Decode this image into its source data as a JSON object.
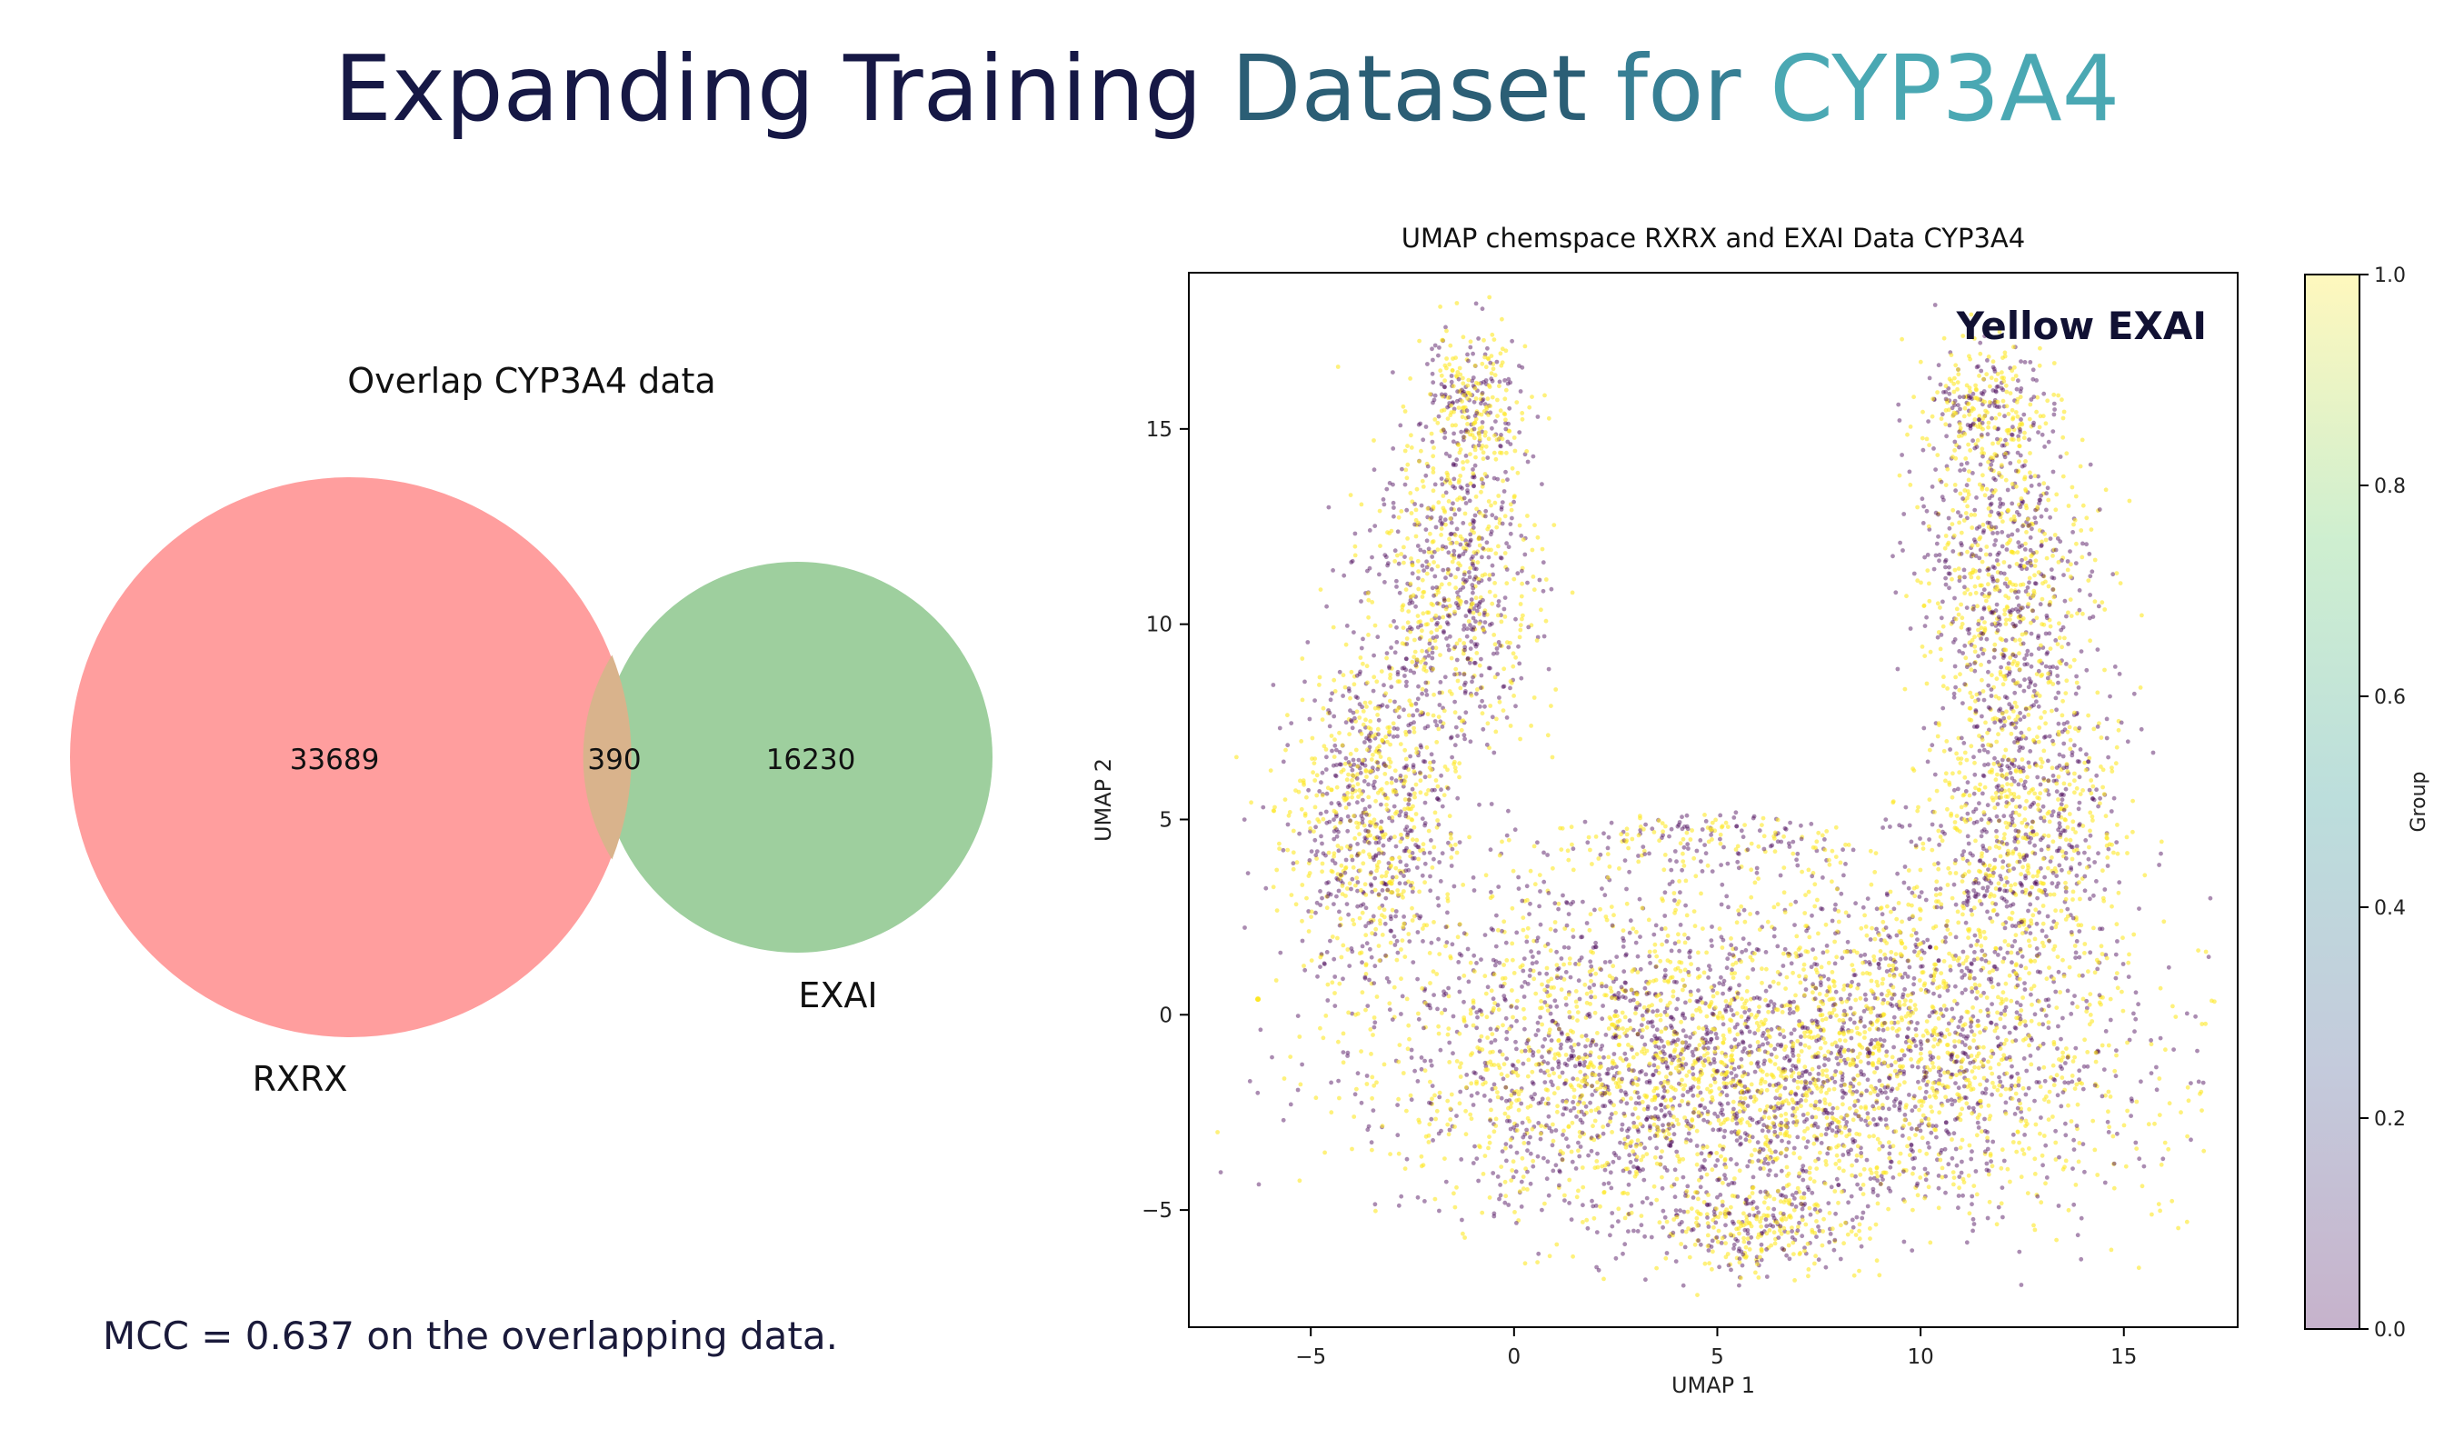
{
  "slide": {
    "title_parts": [
      "Expanding Training",
      "Dataset",
      "for",
      "CYP3A4"
    ],
    "title_colors": [
      "#161845",
      "#2b5e75",
      "#377f94",
      "#4aa8b3"
    ],
    "note": "MCC = 0.637 on the overlapping data."
  },
  "chart_data": [
    {
      "type": "venn",
      "title": "Overlap CYP3A4 data",
      "sets": [
        {
          "name": "RXRX",
          "only": 33689,
          "color": "#ff9999"
        },
        {
          "name": "EXAI",
          "only": 16230,
          "color": "#99cc99"
        }
      ],
      "overlap": 390,
      "overlap_color": "#d9b38c"
    },
    {
      "type": "scatter",
      "title": "UMAP chemspace  RXRX and EXAI Data CYP3A4",
      "xlabel": "UMAP 1",
      "ylabel": "UMAP 2",
      "xlim": [
        -8,
        17.8
      ],
      "ylim": [
        -8,
        19
      ],
      "xticks": [
        -5,
        0,
        5,
        10,
        15
      ],
      "yticks": [
        -5,
        0,
        5,
        10,
        15
      ],
      "annotation": "Yellow EXAI",
      "annotation_position": "top-right",
      "groups": [
        {
          "value": 0.0,
          "color": "#440154"
        },
        {
          "value": 1.0,
          "color": "#fde725"
        }
      ],
      "colorbar": {
        "label": "Group",
        "range": [
          0.0,
          1.0
        ],
        "ticks": [
          "0.0",
          "0.2",
          "0.4",
          "0.6",
          "0.8",
          "1.0"
        ],
        "colors": [
          "#440154",
          "#3b528b",
          "#21918c",
          "#5ec962",
          "#fde725"
        ]
      }
    }
  ]
}
